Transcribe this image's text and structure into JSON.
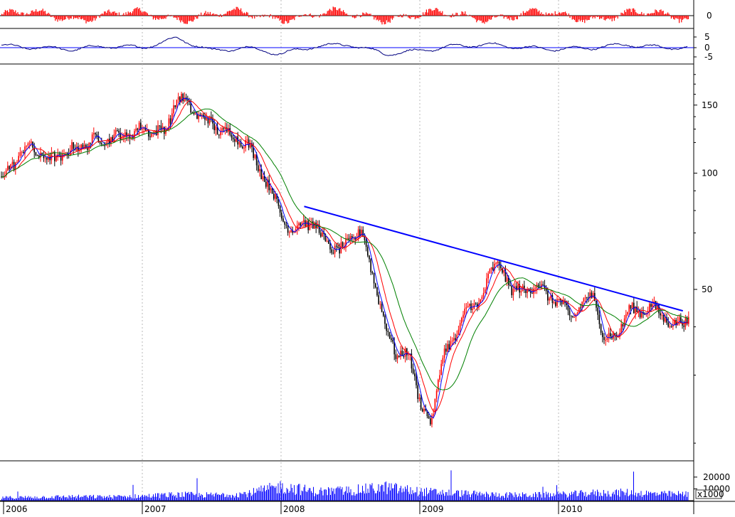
{
  "colors": {
    "background": "#ffffff",
    "grid": "#b9b9b9",
    "axis": "#000000",
    "trendline": "#0000ff",
    "candle_up": "#ff0000",
    "candle_down": "#000000",
    "ma_short": "#0000ff",
    "ma_medium": "#ff0000",
    "ma_long": "#008000",
    "histogram": "#ff0000",
    "oscillator": "#000080",
    "oscillator_baseline": "#0000ff",
    "volume": "#0000ff"
  },
  "chart_data": [
    {
      "type": "bar",
      "panel": "histogram",
      "y_ticks": [
        "0"
      ],
      "ylim": [
        -6,
        6
      ],
      "x_start": "2006-01",
      "x_end": "2010-12",
      "values_sample": [
        1,
        3,
        -1,
        2,
        4,
        -2,
        3,
        2,
        -3,
        1,
        4,
        2,
        -1,
        3,
        -2,
        1,
        5,
        -4,
        2,
        3,
        -3,
        1,
        2,
        -2,
        4,
        3,
        -1,
        2,
        -3,
        1
      ]
    },
    {
      "type": "line",
      "panel": "oscillator",
      "y_ticks": [
        "5",
        "0",
        "-5"
      ],
      "ylim": [
        -8,
        8
      ],
      "x": [
        "2006-01",
        "2006-04",
        "2006-07",
        "2006-10",
        "2007-01",
        "2007-04",
        "2007-07",
        "2007-10",
        "2008-01",
        "2008-04",
        "2008-07",
        "2008-10",
        "2009-01",
        "2009-04",
        "2009-07",
        "2009-10",
        "2010-01",
        "2010-04",
        "2010-07",
        "2010-10"
      ],
      "values": [
        1,
        0,
        -1,
        1,
        0,
        6,
        -2,
        0,
        -4,
        1,
        2,
        -4,
        -2,
        1,
        2,
        0,
        -1,
        0,
        2,
        0
      ]
    },
    {
      "type": "line",
      "panel": "price",
      "scale": "log",
      "y_ticks": [
        "150",
        "100",
        "50"
      ],
      "ylim": [
        18,
        190
      ],
      "x_ticks": [
        "2006",
        "2007",
        "2008",
        "2009",
        "2010"
      ],
      "series": [
        {
          "style": "candlestick",
          "x": [
            "2006-01",
            "2006-03",
            "2006-05",
            "2006-07",
            "2006-09",
            "2006-11",
            "2007-01",
            "2007-03",
            "2007-04",
            "2007-06",
            "2007-08",
            "2007-10",
            "2007-12",
            "2008-01",
            "2008-02",
            "2008-03",
            "2008-04",
            "2008-05",
            "2008-06",
            "2008-07",
            "2008-08",
            "2008-09",
            "2008-10",
            "2008-11",
            "2008-12",
            "2009-01",
            "2009-02",
            "2009-03",
            "2009-04",
            "2009-05",
            "2009-06",
            "2009-07",
            "2009-08",
            "2009-09",
            "2009-10",
            "2009-11",
            "2009-12",
            "2010-01",
            "2010-02",
            "2010-03",
            "2010-04",
            "2010-05",
            "2010-06",
            "2010-07",
            "2010-08",
            "2010-09",
            "2010-10",
            "2010-11",
            "2010-12"
          ],
          "values": [
            98,
            118,
            108,
            115,
            122,
            124,
            130,
            128,
            158,
            140,
            128,
            120,
            92,
            78,
            70,
            76,
            72,
            66,
            62,
            68,
            70,
            54,
            40,
            34,
            34,
            26,
            22,
            35,
            36,
            46,
            44,
            56,
            57,
            50,
            49,
            52,
            48,
            47,
            42,
            46,
            48,
            37,
            38,
            44,
            44,
            45,
            43,
            40,
            42
          ]
        }
      ],
      "trendline": {
        "x": [
          "2008-03",
          "2010-12"
        ],
        "y": [
          82,
          44
        ]
      }
    },
    {
      "type": "bar",
      "panel": "volume",
      "y_ticks": [
        "20000",
        "10000"
      ],
      "y_unit": "x1000",
      "ylim": [
        0,
        32000
      ],
      "x": [
        "2006-01",
        "2006-04",
        "2006-07",
        "2006-10",
        "2007-01",
        "2007-04",
        "2007-07",
        "2007-10",
        "2008-01",
        "2008-04",
        "2008-07",
        "2008-10",
        "2009-01",
        "2009-04",
        "2009-07",
        "2009-10",
        "2010-01",
        "2010-04",
        "2010-07",
        "2010-10"
      ],
      "values": [
        3000,
        3500,
        4000,
        3800,
        4500,
        6000,
        5500,
        7000,
        14000,
        9000,
        10000,
        13000,
        9000,
        7500,
        6000,
        5500,
        6000,
        7500,
        8000,
        6500
      ]
    }
  ]
}
